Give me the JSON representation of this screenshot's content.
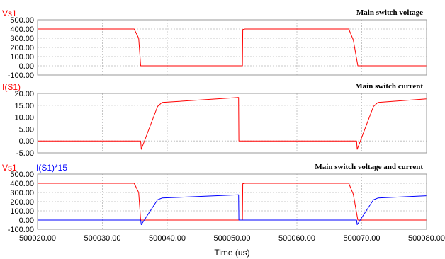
{
  "chart_data": {
    "type": "line",
    "xlabel": "Time (us)",
    "xlim": [
      500020,
      500080
    ],
    "x_ticks": [
      "500020.00",
      "500030.00",
      "500040.00",
      "500050.00",
      "500060.00",
      "500070.00",
      "500080.00"
    ],
    "x_tick_values": [
      500020,
      500030,
      500040,
      500050,
      500060,
      500070,
      500080
    ],
    "grid": true,
    "legend": "top-left",
    "panels": [
      {
        "title": "Main switch voltage",
        "ylim": [
          -100,
          500
        ],
        "y_ticks": [
          "500.00",
          "400.00",
          "300.00",
          "200.00",
          "100.00",
          "0.00",
          "-100.00"
        ],
        "y_tick_values": [
          500,
          400,
          300,
          200,
          100,
          0,
          -100
        ],
        "series": [
          {
            "name": "Vs1",
            "color": "#ff0000",
            "x": [
              500020,
              500034.9,
              500035.6,
              500035.9,
              500051.6,
              500051.65,
              500052,
              500068.0,
              500068.7,
              500069.4,
              500080
            ],
            "y": [
              400,
              400,
              300,
              0,
              0,
              395,
              400,
              400,
              280,
              0,
              0
            ]
          }
        ]
      },
      {
        "title": "Main switch current",
        "ylim": [
          -5,
          20
        ],
        "y_ticks": [
          "20.00",
          "15.00",
          "10.00",
          "5.00",
          "0.00",
          "-5.00"
        ],
        "y_tick_values": [
          20,
          15,
          10,
          5,
          0,
          -5
        ],
        "series": [
          {
            "name": "I(S1)",
            "color": "#ff0000",
            "x": [
              500020,
              500035.9,
              500036.0,
              500038.5,
              500039.2,
              500051.0,
              500051.05,
              500069.2,
              500069.3,
              500071.8,
              500072.5,
              500080
            ],
            "y": [
              0,
              0,
              -3.5,
              14.5,
              16.2,
              18.3,
              0,
              0,
              -3.5,
              14.5,
              16.2,
              17.7
            ]
          }
        ]
      },
      {
        "title": "Main switch voltage and current",
        "ylim": [
          -100,
          500
        ],
        "y_ticks": [
          "500.00",
          "400.00",
          "300.00",
          "200.00",
          "100.00",
          "0.00",
          "-100.00"
        ],
        "y_tick_values": [
          500,
          400,
          300,
          200,
          100,
          0,
          -100
        ],
        "series": [
          {
            "name": "Vs1",
            "color": "#ff0000",
            "x": [
              500020,
              500034.9,
              500035.6,
              500035.9,
              500051.6,
              500051.65,
              500052,
              500068.0,
              500068.7,
              500069.4,
              500080
            ],
            "y": [
              400,
              400,
              300,
              0,
              0,
              395,
              400,
              400,
              280,
              0,
              0
            ]
          },
          {
            "name": "I(S1)*15",
            "color": "#0000ff",
            "x": [
              500020,
              500035.9,
              500036.0,
              500038.5,
              500039.2,
              500051.0,
              500051.05,
              500069.2,
              500069.3,
              500071.8,
              500072.5,
              500080
            ],
            "y": [
              0,
              0,
              -50,
              220,
              240,
              275,
              0,
              0,
              -50,
              220,
              240,
              265
            ]
          }
        ]
      }
    ]
  }
}
